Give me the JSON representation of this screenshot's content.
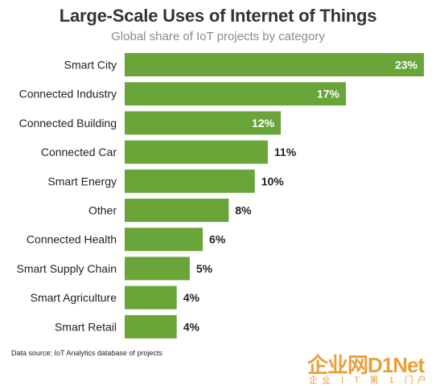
{
  "chart_data": {
    "type": "bar",
    "orientation": "horizontal",
    "title": "Large-Scale Uses of Internet of Things",
    "subtitle": "Global share of IoT projects by category",
    "categories": [
      "Smart City",
      "Connected Industry",
      "Connected Building",
      "Connected Car",
      "Smart Energy",
      "Other",
      "Connected Health",
      "Smart Supply Chain",
      "Smart Agriculture",
      "Smart Retail"
    ],
    "values": [
      23,
      17,
      12,
      11,
      10,
      8,
      6,
      5,
      4,
      4
    ],
    "value_labels": [
      "23%",
      "17%",
      "12%",
      "11%",
      "10%",
      "8%",
      "6%",
      "5%",
      "4%",
      "4%"
    ],
    "xlim": [
      0,
      23
    ],
    "grid": false,
    "legend": "none",
    "bar_color": "#6aa53a",
    "label_inside_color": "#ffffff",
    "label_outside_color": "#222222"
  },
  "source": "Data source: IoT Analytics database of projects",
  "watermark": {
    "main": "企业网D1Net",
    "sub": "企业 I T 第 1 门户"
  }
}
